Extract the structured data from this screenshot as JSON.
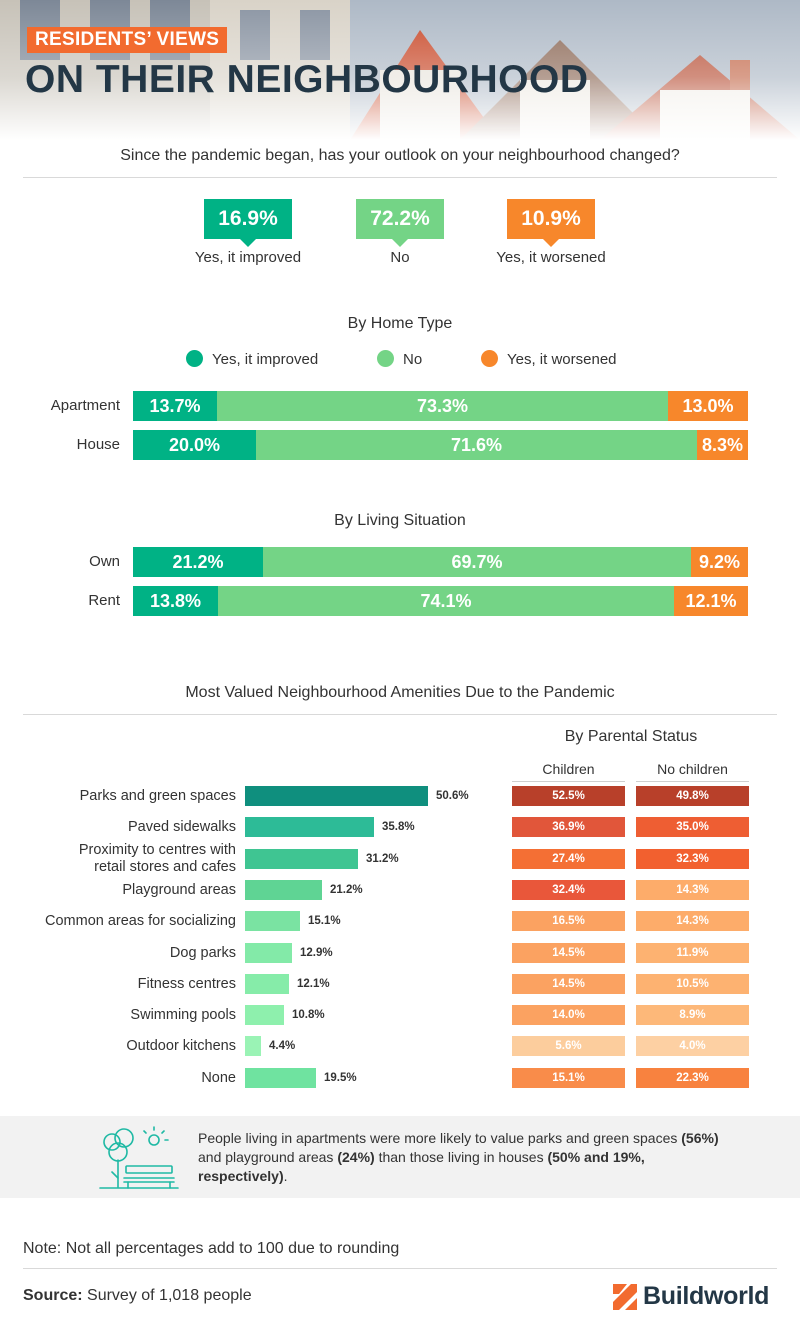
{
  "header": {
    "badge": "RESIDENTS’ VIEWS",
    "title": "ON THEIR NEIGHBOURHOOD"
  },
  "question": "Since the pandemic began, has your outlook on your neighbourhood changed?",
  "colors": {
    "improved": "#00b285",
    "no": "#74d486",
    "worsened": "#f7872b",
    "title": "#233746",
    "badge": "#f26b2f"
  },
  "overall": [
    {
      "value": "16.9%",
      "label": "Yes, it improved"
    },
    {
      "value": "72.2%",
      "label": "No"
    },
    {
      "value": "10.9%",
      "label": "Yes, it worsened"
    }
  ],
  "legend": [
    "Yes, it improved",
    "No",
    "Yes, it worsened"
  ],
  "chart_data": [
    {
      "type": "bar",
      "stacked": true,
      "orientation": "horizontal",
      "title": "By Home Type",
      "categories": [
        "Apartment",
        "House"
      ],
      "series": [
        {
          "name": "Yes, it improved",
          "values": [
            13.7,
            20.0
          ],
          "labels": [
            "13.7%",
            "20.0%"
          ]
        },
        {
          "name": "No",
          "values": [
            73.3,
            71.6
          ],
          "labels": [
            "73.3%",
            "71.6%"
          ]
        },
        {
          "name": "Yes, it worsened",
          "values": [
            13.0,
            8.3
          ],
          "labels": [
            "13.0%",
            "8.3%"
          ]
        }
      ]
    },
    {
      "type": "bar",
      "stacked": true,
      "orientation": "horizontal",
      "title": "By Living Situation",
      "categories": [
        "Own",
        "Rent"
      ],
      "series": [
        {
          "name": "Yes, it improved",
          "values": [
            21.2,
            13.8
          ],
          "labels": [
            "21.2%",
            "13.8%"
          ]
        },
        {
          "name": "No",
          "values": [
            69.7,
            74.1
          ],
          "labels": [
            "69.7%",
            "74.1%"
          ]
        },
        {
          "name": "Yes, it worsened",
          "values": [
            9.2,
            12.1
          ],
          "labels": [
            "9.2%",
            "12.1%"
          ]
        }
      ]
    },
    {
      "type": "bar",
      "orientation": "horizontal",
      "title": "Most Valued Neighbourhood Amenities Due to the Pandemic",
      "xlim": [
        0,
        50.6
      ],
      "categories": [
        "Parks and green spaces",
        "Paved sidewalks",
        "Proximity to centres with retail stores and cafes",
        "Playground areas",
        "Common areas for socializing",
        "Dog parks",
        "Fitness centres",
        "Swimming pools",
        "Outdoor kitchens",
        "None"
      ],
      "category_lines": [
        [
          "Parks and green spaces"
        ],
        [
          "Paved sidewalks"
        ],
        [
          "Proximity to centres with",
          "retail stores and cafes"
        ],
        [
          "Playground areas"
        ],
        [
          "Common areas for socializing"
        ],
        [
          "Dog parks"
        ],
        [
          "Fitness centres"
        ],
        [
          "Swimming pools"
        ],
        [
          "Outdoor kitchens"
        ],
        [
          "None"
        ]
      ],
      "values": [
        50.6,
        35.8,
        31.2,
        21.2,
        15.1,
        12.9,
        12.1,
        10.8,
        4.4,
        19.5
      ],
      "labels": [
        "50.6%",
        "35.8%",
        "31.2%",
        "21.2%",
        "15.1%",
        "12.9%",
        "12.1%",
        "10.8%",
        "4.4%",
        "19.5%"
      ],
      "bar_colors": [
        "#0f8f7e",
        "#2dbb97",
        "#3fc592",
        "#5fd494",
        "#7ae3a2",
        "#83eaa8",
        "#86eca9",
        "#8ef0ad",
        "#9af3b5",
        "#6fe3a0"
      ]
    },
    {
      "type": "table",
      "title": "By Parental Status",
      "columns": [
        "Children",
        "No children"
      ],
      "rows": [
        "Parks and green spaces",
        "Paved sidewalks",
        "Proximity to centres with retail stores and cafes",
        "Playground areas",
        "Common areas for socializing",
        "Dog parks",
        "Fitness centres",
        "Swimming pools",
        "Outdoor kitchens",
        "None"
      ],
      "children": [
        "52.5%",
        "36.9%",
        "27.4%",
        "32.4%",
        "16.5%",
        "14.5%",
        "14.5%",
        "14.0%",
        "5.6%",
        "15.1%"
      ],
      "no_children": [
        "49.8%",
        "35.0%",
        "32.3%",
        "14.3%",
        "14.3%",
        "11.9%",
        "10.5%",
        "8.9%",
        "4.0%",
        "22.3%"
      ],
      "children_colors": [
        "#b8402a",
        "#e1563a",
        "#f46f34",
        "#e9573a",
        "#fba261",
        "#fba261",
        "#fba261",
        "#fba261",
        "#fccd9d",
        "#f98c4a"
      ],
      "no_children_colors": [
        "#b8402a",
        "#ee5e33",
        "#f2602f",
        "#fdac6a",
        "#fdac6a",
        "#fdb271",
        "#fdb271",
        "#fdb879",
        "#fdd0a3",
        "#f8823f"
      ]
    }
  ],
  "callout": {
    "segments": [
      {
        "text": "People living in apartments were more likely to value parks and green spaces ",
        "bold": false
      },
      {
        "text": "(56%)",
        "bold": true
      },
      {
        "text": " and playground areas ",
        "bold": false
      },
      {
        "text": "(24%)",
        "bold": true
      },
      {
        "text": " than those living in houses ",
        "bold": false
      },
      {
        "text": "(50% and 19%, respectively)",
        "bold": true
      },
      {
        "text": ".",
        "bold": false
      }
    ]
  },
  "footnote": "Note: Not all percentages add to 100 due to rounding",
  "source": {
    "label": "Source:",
    "text": " Survey of 1,018 people"
  },
  "logo": {
    "text": "Buildworld"
  }
}
